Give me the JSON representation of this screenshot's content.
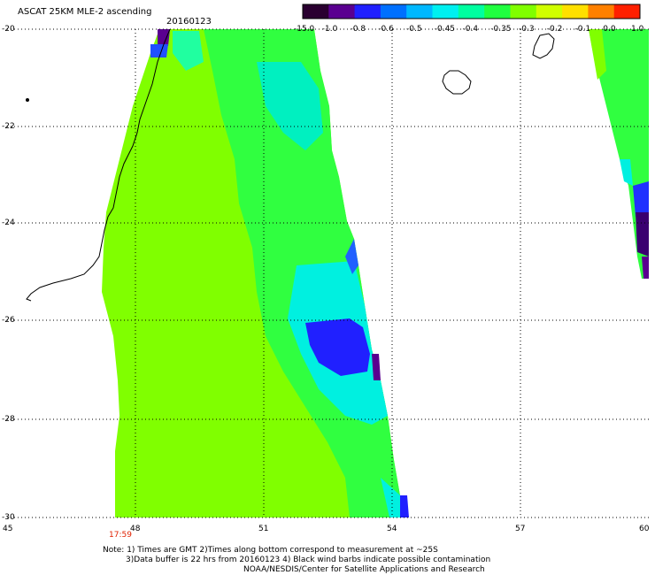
{
  "header": {
    "title": "ASCAT 25KM MLE-2 ascending",
    "date": "20160123"
  },
  "colorbar": {
    "labels": [
      "-15.0",
      "-1.0",
      "-0.8",
      "-0.6",
      "-0.5",
      "-0.45",
      "-0.4",
      "-0.35",
      "-0.3",
      "-0.2",
      "-0.1",
      "0.0",
      "1.0"
    ],
    "colors": [
      "#2a0030",
      "#5a0090",
      "#2020ff",
      "#0070ff",
      "#00b8ff",
      "#00f0f0",
      "#00ffa0",
      "#20ff40",
      "#80ff00",
      "#d0ff00",
      "#ffe000",
      "#ff8000",
      "#ff2000"
    ]
  },
  "axes": {
    "lat_labels": [
      "-20",
      "-22",
      "-24",
      "-26",
      "-28",
      "-30"
    ],
    "lon_labels": [
      "45",
      "48",
      "51",
      "54",
      "57",
      "60"
    ]
  },
  "time_label": "17:59",
  "notes": {
    "line1": "Note: 1) Times are GMT 2)Times along bottom correspond to measurement at ~25S",
    "line2": "3)Data buffer is 22 hrs from 20160123 4) Black wind barbs indicate possible contamination",
    "line3": "NOAA/NESDIS/Center for Satellite Applications and Research"
  }
}
